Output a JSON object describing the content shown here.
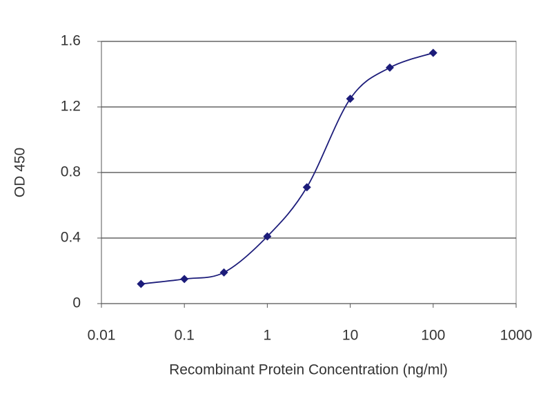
{
  "chart_data": {
    "type": "line",
    "x_label": "Recombinant Protein Concentration (ng/ml)",
    "y_label": "OD 450",
    "x": [
      0.03,
      0.1,
      0.3,
      1,
      3,
      10,
      30,
      100
    ],
    "values": [
      0.12,
      0.15,
      0.19,
      0.41,
      0.71,
      1.25,
      1.44,
      1.53
    ],
    "color": "#1c1c7a",
    "xscale": "log",
    "xlim": [
      0.01,
      1000
    ],
    "xticks": [
      0.01,
      0.1,
      1,
      10,
      100,
      1000
    ],
    "ylim": [
      0,
      1.6
    ],
    "yticks": [
      0,
      0.4,
      0.8,
      1.2,
      1.6
    ],
    "grid": true
  }
}
